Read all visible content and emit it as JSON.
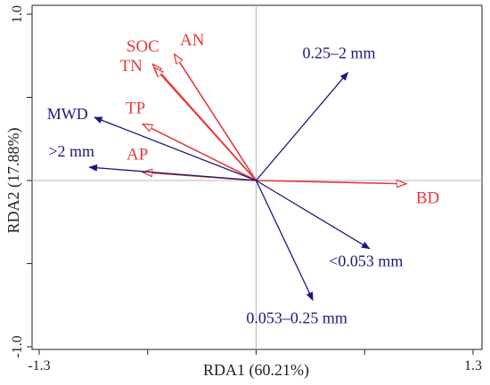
{
  "chart_data": {
    "type": "scatter",
    "subtype": "rda-biplot",
    "title": "",
    "xlabel": "RDA1 (60.21%)",
    "ylabel": "RDA2 (17.88%)",
    "xlim": [
      -1.3,
      1.3
    ],
    "ylim": [
      -1.0,
      1.0
    ],
    "x_ticks": [
      {
        "value": -1.3,
        "label": "-1.3"
      },
      {
        "value": 1.3,
        "label": "1.3"
      }
    ],
    "y_ticks": [
      {
        "value": 1.0,
        "label": "1.0"
      },
      {
        "value": -1.0,
        "label": "-1.0"
      }
    ],
    "minor_ticks_x": [
      -0.65,
      0.65
    ],
    "minor_ticks_y": [
      0.5,
      -0.5
    ],
    "zero_lines": true,
    "colors": {
      "explanatory": "#e8383b",
      "response": "#1a1a7a",
      "zero_line": "#b8b8b8"
    },
    "series": [
      {
        "group": "explanatory",
        "points": [
          {
            "label": "SOC",
            "x": -0.62,
            "y": 0.7
          },
          {
            "label": "AN",
            "x": -0.49,
            "y": 0.76
          },
          {
            "label": "TN",
            "x": -0.61,
            "y": 0.68
          },
          {
            "label": "TP",
            "x": -0.68,
            "y": 0.34
          },
          {
            "label": "AP",
            "x": -0.68,
            "y": 0.05
          },
          {
            "label": "BD",
            "x": 0.9,
            "y": -0.02
          }
        ]
      },
      {
        "group": "response",
        "points": [
          {
            "label": "0.25–2 mm",
            "x": 0.55,
            "y": 0.65
          },
          {
            "label": "MWD",
            "x": -0.97,
            "y": 0.38
          },
          {
            "label": ">2 mm",
            "x": -1.0,
            "y": 0.08
          },
          {
            "label": "<0.053 mm",
            "x": 0.68,
            "y": -0.41
          },
          {
            "label": "0.053–0.25 mm",
            "x": 0.34,
            "y": -0.72
          }
        ]
      }
    ]
  }
}
